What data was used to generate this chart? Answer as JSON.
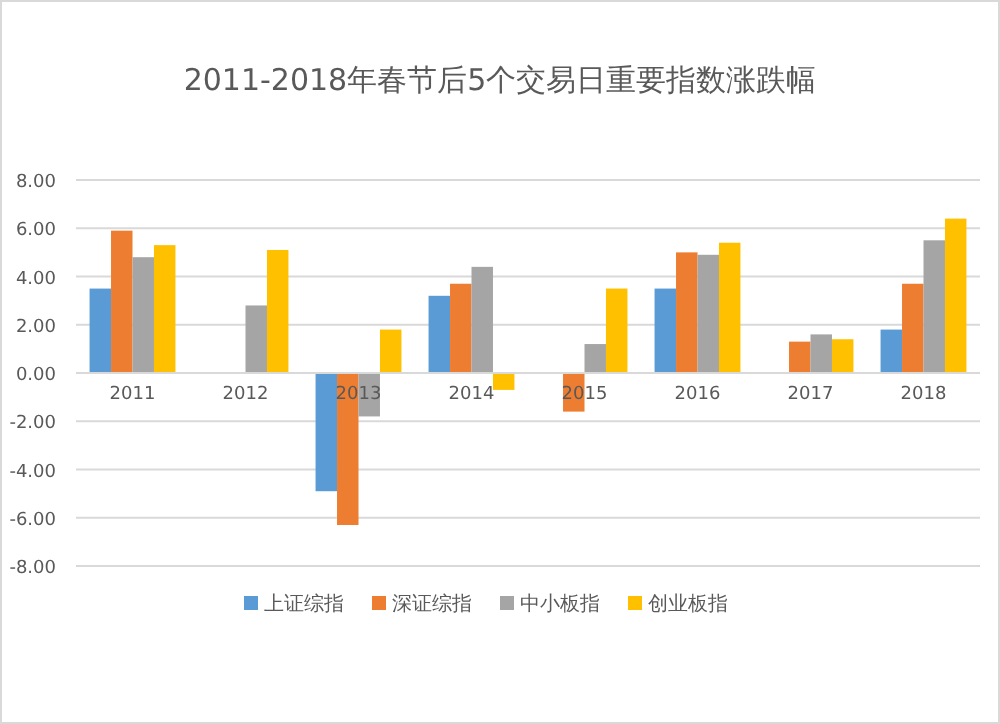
{
  "chart_data": {
    "type": "bar",
    "title": "2011-2018年春节后5个交易日重要指数涨跌幅",
    "categories": [
      "2011",
      "2012",
      "2013",
      "2014",
      "2015",
      "2016",
      "2017",
      "2018"
    ],
    "series": [
      {
        "name": "上证综指",
        "color": "#5b9bd5",
        "values": [
          3.5,
          null,
          -4.9,
          3.2,
          null,
          3.5,
          null,
          1.8
        ]
      },
      {
        "name": "深证综指",
        "color": "#ed7d31",
        "values": [
          5.9,
          null,
          -6.3,
          3.7,
          -1.6,
          5.0,
          1.3,
          3.7
        ]
      },
      {
        "name": "中小板指",
        "color": "#a5a5a5",
        "values": [
          4.8,
          2.8,
          -1.8,
          4.4,
          1.2,
          4.9,
          1.6,
          5.5
        ]
      },
      {
        "name": "创业板指",
        "color": "#ffc000",
        "values": [
          5.3,
          5.1,
          1.8,
          -0.7,
          3.5,
          5.4,
          1.4,
          6.4
        ]
      }
    ],
    "ylim": [
      -8,
      8
    ],
    "yticks": [
      {
        "value": -8,
        "label": "-8.00"
      },
      {
        "value": -6,
        "label": "-6.00"
      },
      {
        "value": -4,
        "label": "-4.00"
      },
      {
        "value": -2,
        "label": "-2.00"
      },
      {
        "value": 0,
        "label": "0.00"
      },
      {
        "value": 2,
        "label": "2.00"
      },
      {
        "value": 4,
        "label": "4.00"
      },
      {
        "value": 6,
        "label": "6.00"
      },
      {
        "value": 8,
        "label": "8.00"
      }
    ],
    "grid": "y",
    "legend": "bottom"
  }
}
